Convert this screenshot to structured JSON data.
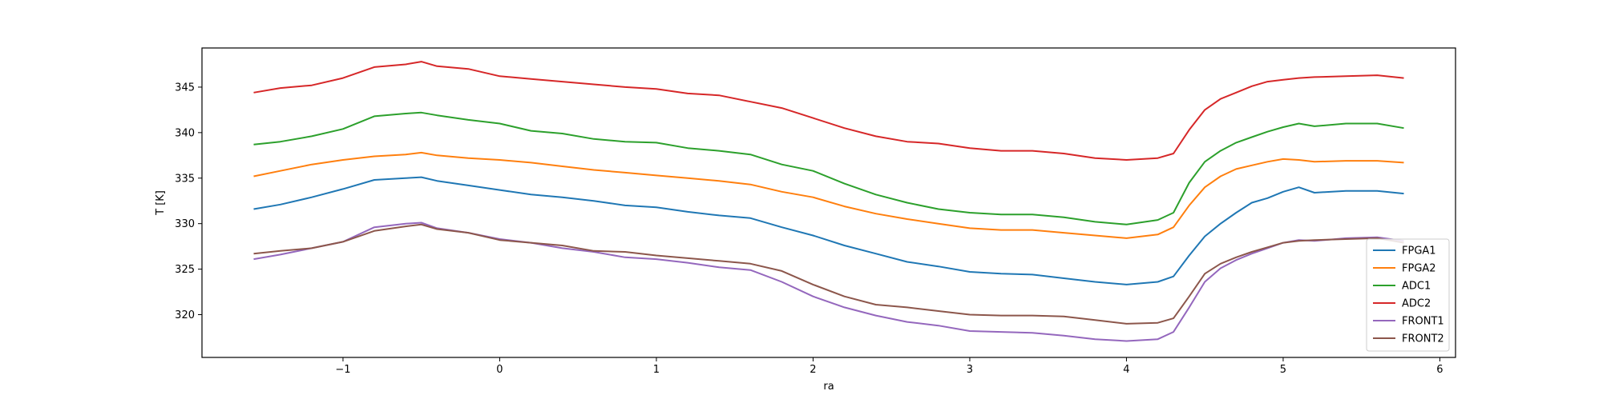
{
  "chart_data": {
    "type": "line",
    "title": "",
    "xlabel": "ra",
    "ylabel": "T [K]",
    "xlim": [
      -1.9,
      6.1
    ],
    "ylim": [
      315.3,
      349.3
    ],
    "xticks": [
      -1,
      0,
      1,
      2,
      3,
      4,
      5,
      6
    ],
    "xtick_labels": [
      "−1",
      "0",
      "1",
      "2",
      "3",
      "4",
      "5",
      "6"
    ],
    "yticks": [
      320,
      325,
      330,
      335,
      340,
      345
    ],
    "ytick_labels": [
      "320",
      "325",
      "330",
      "335",
      "340",
      "345"
    ],
    "grid": false,
    "legend_position": "lower right",
    "series": [
      {
        "name": "FPGA1",
        "color": "#1f77b4",
        "x": [
          -1.57,
          -1.4,
          -1.2,
          -1.0,
          -0.8,
          -0.6,
          -0.5,
          -0.4,
          -0.2,
          0.0,
          0.2,
          0.4,
          0.6,
          0.8,
          1.0,
          1.2,
          1.4,
          1.6,
          1.8,
          2.0,
          2.2,
          2.4,
          2.6,
          2.8,
          3.0,
          3.2,
          3.4,
          3.6,
          3.8,
          4.0,
          4.2,
          4.3,
          4.4,
          4.5,
          4.6,
          4.7,
          4.8,
          4.9,
          5.0,
          5.1,
          5.2,
          5.4,
          5.6,
          5.77
        ],
        "y": [
          331.6,
          332.1,
          332.9,
          333.8,
          334.8,
          335.0,
          335.1,
          334.7,
          334.2,
          333.7,
          333.2,
          332.9,
          332.5,
          332.0,
          331.8,
          331.3,
          330.9,
          330.6,
          329.6,
          328.7,
          327.6,
          326.7,
          325.8,
          325.3,
          324.7,
          324.5,
          324.4,
          324.0,
          323.6,
          323.3,
          323.6,
          324.2,
          326.5,
          328.6,
          330.0,
          331.2,
          332.3,
          332.8,
          333.5,
          334.0,
          333.4,
          333.6,
          333.6,
          333.3
        ]
      },
      {
        "name": "FPGA2",
        "color": "#ff7f0e",
        "x": [
          -1.57,
          -1.4,
          -1.2,
          -1.0,
          -0.8,
          -0.6,
          -0.5,
          -0.4,
          -0.2,
          0.0,
          0.2,
          0.4,
          0.6,
          0.8,
          1.0,
          1.2,
          1.4,
          1.6,
          1.8,
          2.0,
          2.2,
          2.4,
          2.6,
          2.8,
          3.0,
          3.2,
          3.4,
          3.6,
          3.8,
          4.0,
          4.2,
          4.3,
          4.4,
          4.5,
          4.6,
          4.7,
          4.8,
          4.9,
          5.0,
          5.1,
          5.2,
          5.4,
          5.6,
          5.77
        ],
        "y": [
          335.2,
          335.8,
          336.5,
          337.0,
          337.4,
          337.6,
          337.8,
          337.5,
          337.2,
          337.0,
          336.7,
          336.3,
          335.9,
          335.6,
          335.3,
          335.0,
          334.7,
          334.3,
          333.5,
          332.9,
          331.9,
          331.1,
          330.5,
          330.0,
          329.5,
          329.3,
          329.3,
          329.0,
          328.7,
          328.4,
          328.8,
          329.6,
          332.0,
          334.0,
          335.2,
          336.0,
          336.4,
          336.8,
          337.1,
          337.0,
          336.8,
          336.9,
          336.9,
          336.7
        ]
      },
      {
        "name": "ADC1",
        "color": "#2ca02c",
        "x": [
          -1.57,
          -1.4,
          -1.2,
          -1.0,
          -0.8,
          -0.6,
          -0.5,
          -0.4,
          -0.2,
          0.0,
          0.2,
          0.4,
          0.6,
          0.8,
          1.0,
          1.2,
          1.4,
          1.6,
          1.8,
          2.0,
          2.2,
          2.4,
          2.6,
          2.8,
          3.0,
          3.2,
          3.4,
          3.6,
          3.8,
          4.0,
          4.2,
          4.3,
          4.4,
          4.5,
          4.6,
          4.7,
          4.8,
          4.9,
          5.0,
          5.1,
          5.2,
          5.4,
          5.6,
          5.77
        ],
        "y": [
          338.7,
          339.0,
          339.6,
          340.4,
          341.8,
          342.1,
          342.2,
          341.9,
          341.4,
          341.0,
          340.2,
          339.9,
          339.3,
          339.0,
          338.9,
          338.3,
          338.0,
          337.6,
          336.5,
          335.8,
          334.4,
          333.2,
          332.3,
          331.6,
          331.2,
          331.0,
          331.0,
          330.7,
          330.2,
          329.9,
          330.4,
          331.2,
          334.5,
          336.8,
          338.0,
          338.9,
          339.5,
          340.1,
          340.6,
          341.0,
          340.7,
          341.0,
          341.0,
          340.5
        ]
      },
      {
        "name": "ADC2",
        "color": "#d62728",
        "x": [
          -1.57,
          -1.4,
          -1.2,
          -1.0,
          -0.8,
          -0.6,
          -0.5,
          -0.4,
          -0.2,
          0.0,
          0.2,
          0.4,
          0.6,
          0.8,
          1.0,
          1.2,
          1.4,
          1.6,
          1.8,
          2.0,
          2.2,
          2.4,
          2.6,
          2.8,
          3.0,
          3.2,
          3.4,
          3.6,
          3.8,
          4.0,
          4.2,
          4.3,
          4.4,
          4.5,
          4.6,
          4.7,
          4.8,
          4.9,
          5.0,
          5.1,
          5.2,
          5.4,
          5.6,
          5.77
        ],
        "y": [
          344.4,
          344.9,
          345.2,
          346.0,
          347.2,
          347.5,
          347.8,
          347.3,
          347.0,
          346.2,
          345.9,
          345.6,
          345.3,
          345.0,
          344.8,
          344.3,
          344.1,
          343.4,
          342.7,
          341.6,
          340.5,
          339.6,
          339.0,
          338.8,
          338.3,
          338.0,
          338.0,
          337.7,
          337.2,
          337.0,
          337.2,
          337.7,
          340.3,
          342.5,
          343.7,
          344.4,
          345.1,
          345.6,
          345.8,
          346.0,
          346.1,
          346.2,
          346.3,
          346.0
        ]
      },
      {
        "name": "FRONT1",
        "color": "#9467bd",
        "x": [
          -1.57,
          -1.4,
          -1.2,
          -1.0,
          -0.8,
          -0.6,
          -0.5,
          -0.4,
          -0.2,
          0.0,
          0.2,
          0.4,
          0.6,
          0.8,
          1.0,
          1.2,
          1.4,
          1.6,
          1.8,
          2.0,
          2.2,
          2.4,
          2.6,
          2.8,
          3.0,
          3.2,
          3.4,
          3.6,
          3.8,
          4.0,
          4.2,
          4.3,
          4.4,
          4.5,
          4.6,
          4.7,
          4.8,
          4.9,
          5.0,
          5.1,
          5.2,
          5.4,
          5.6,
          5.77
        ],
        "y": [
          326.1,
          326.6,
          327.3,
          328.0,
          329.6,
          330.0,
          330.1,
          329.5,
          329.0,
          328.3,
          327.9,
          327.3,
          326.9,
          326.3,
          326.1,
          325.7,
          325.2,
          324.9,
          323.6,
          322.0,
          320.8,
          319.9,
          319.2,
          318.8,
          318.2,
          318.1,
          318.0,
          317.7,
          317.3,
          317.1,
          317.3,
          318.1,
          320.8,
          323.6,
          325.1,
          326.0,
          326.7,
          327.3,
          327.9,
          328.2,
          328.1,
          328.4,
          328.5,
          328.1
        ]
      },
      {
        "name": "FRONT2",
        "color": "#8c564b",
        "x": [
          -1.57,
          -1.4,
          -1.2,
          -1.0,
          -0.8,
          -0.6,
          -0.5,
          -0.4,
          -0.2,
          0.0,
          0.2,
          0.4,
          0.6,
          0.8,
          1.0,
          1.2,
          1.4,
          1.6,
          1.8,
          2.0,
          2.2,
          2.4,
          2.6,
          2.8,
          3.0,
          3.2,
          3.4,
          3.6,
          3.8,
          4.0,
          4.2,
          4.3,
          4.4,
          4.5,
          4.6,
          4.7,
          4.8,
          4.9,
          5.0,
          5.1,
          5.2,
          5.4,
          5.6,
          5.77
        ],
        "y": [
          326.7,
          327.0,
          327.3,
          328.0,
          329.2,
          329.7,
          329.9,
          329.4,
          329.0,
          328.2,
          327.9,
          327.6,
          327.0,
          326.9,
          326.5,
          326.2,
          325.9,
          325.6,
          324.8,
          323.3,
          322.0,
          321.1,
          320.8,
          320.4,
          320.0,
          319.9,
          319.9,
          319.8,
          319.4,
          319.0,
          319.1,
          319.6,
          322.0,
          324.5,
          325.6,
          326.3,
          326.9,
          327.4,
          327.9,
          328.1,
          328.2,
          328.3,
          328.4,
          327.9
        ]
      }
    ]
  }
}
